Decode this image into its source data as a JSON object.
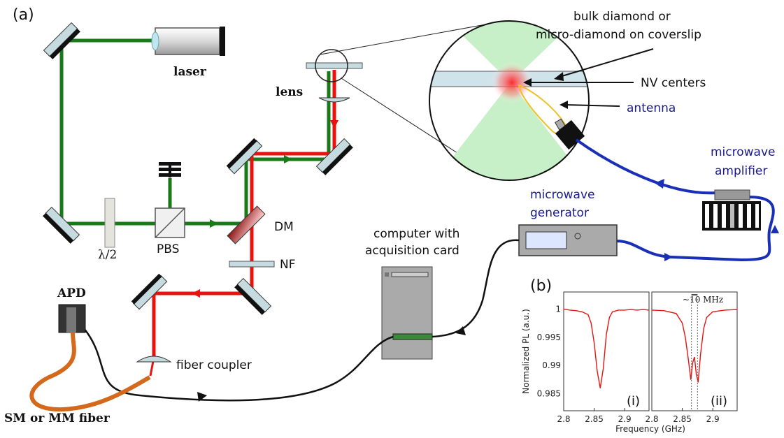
{
  "panels": {
    "a": "(a)",
    "b": "(b)"
  },
  "labels": {
    "laser": "laser",
    "lens": "lens",
    "half_wave": "λ/2",
    "pbs": "PBS",
    "dm": "DM",
    "nf": "NF",
    "apd": "APD",
    "fiber_coupler": "fiber coupler",
    "fiber": "SM or MM fiber",
    "computer_line1": "computer with",
    "computer_line2": "acquisition card",
    "mw_gen_line1": "microwave",
    "mw_gen_line2": "generator",
    "mw_amp_line1": "microwave",
    "mw_amp_line2": "amplifier",
    "sample_line1": "bulk diamond or",
    "sample_line2": "micro-diamond on coverslip",
    "nv": "NV centers",
    "antenna": "antenna"
  },
  "colors": {
    "green": "#1a7a1a",
    "red": "#e8130f",
    "microwave_blue": "#1a2fb8",
    "fiber_orange": "#d4691c",
    "label_blue": "#1a1a8c"
  },
  "chart_data": [
    {
      "type": "line",
      "id": "i",
      "panel_label": "(i)",
      "xlabel": "Frequency (GHz)",
      "ylabel": "Normalized PL (a.u.)",
      "xlim": [
        2.8,
        2.94
      ],
      "ylim": [
        0.982,
        1.003
      ],
      "xticks": [
        "2.8",
        "2.85",
        "2.9"
      ],
      "yticks": [
        "1",
        "0.995",
        "0.99",
        "0.985"
      ],
      "series": [
        {
          "x": [
            2.8,
            2.81,
            2.82,
            2.83,
            2.84,
            2.845,
            2.85,
            2.855,
            2.86,
            2.865,
            2.87,
            2.875,
            2.88,
            2.89,
            2.9,
            2.91,
            2.92,
            2.93,
            2.94
          ],
          "y": [
            1.0,
            0.9998,
            0.9997,
            0.9995,
            0.999,
            0.9975,
            0.994,
            0.989,
            0.986,
            0.9895,
            0.9955,
            0.9985,
            0.9995,
            0.9998,
            0.9998,
            0.9999,
            0.9998,
            0.9999,
            0.9998
          ]
        }
      ]
    },
    {
      "type": "line",
      "id": "ii",
      "panel_label": "(ii)",
      "annotation": "~10 MHz",
      "xlim": [
        2.8,
        2.94
      ],
      "ylim": [
        0.982,
        1.003
      ],
      "xticks": [
        "2.8",
        "2.85",
        "2.9"
      ],
      "series": [
        {
          "x": [
            2.8,
            2.82,
            2.84,
            2.85,
            2.855,
            2.86,
            2.864,
            2.867,
            2.87,
            2.873,
            2.876,
            2.88,
            2.885,
            2.89,
            2.9,
            2.92,
            2.94
          ],
          "y": [
            0.9998,
            0.9997,
            0.9992,
            0.9975,
            0.995,
            0.991,
            0.9875,
            0.9905,
            0.9915,
            0.9885,
            0.987,
            0.992,
            0.9965,
            0.9985,
            0.9995,
            0.9998,
            0.9999
          ]
        }
      ]
    }
  ]
}
